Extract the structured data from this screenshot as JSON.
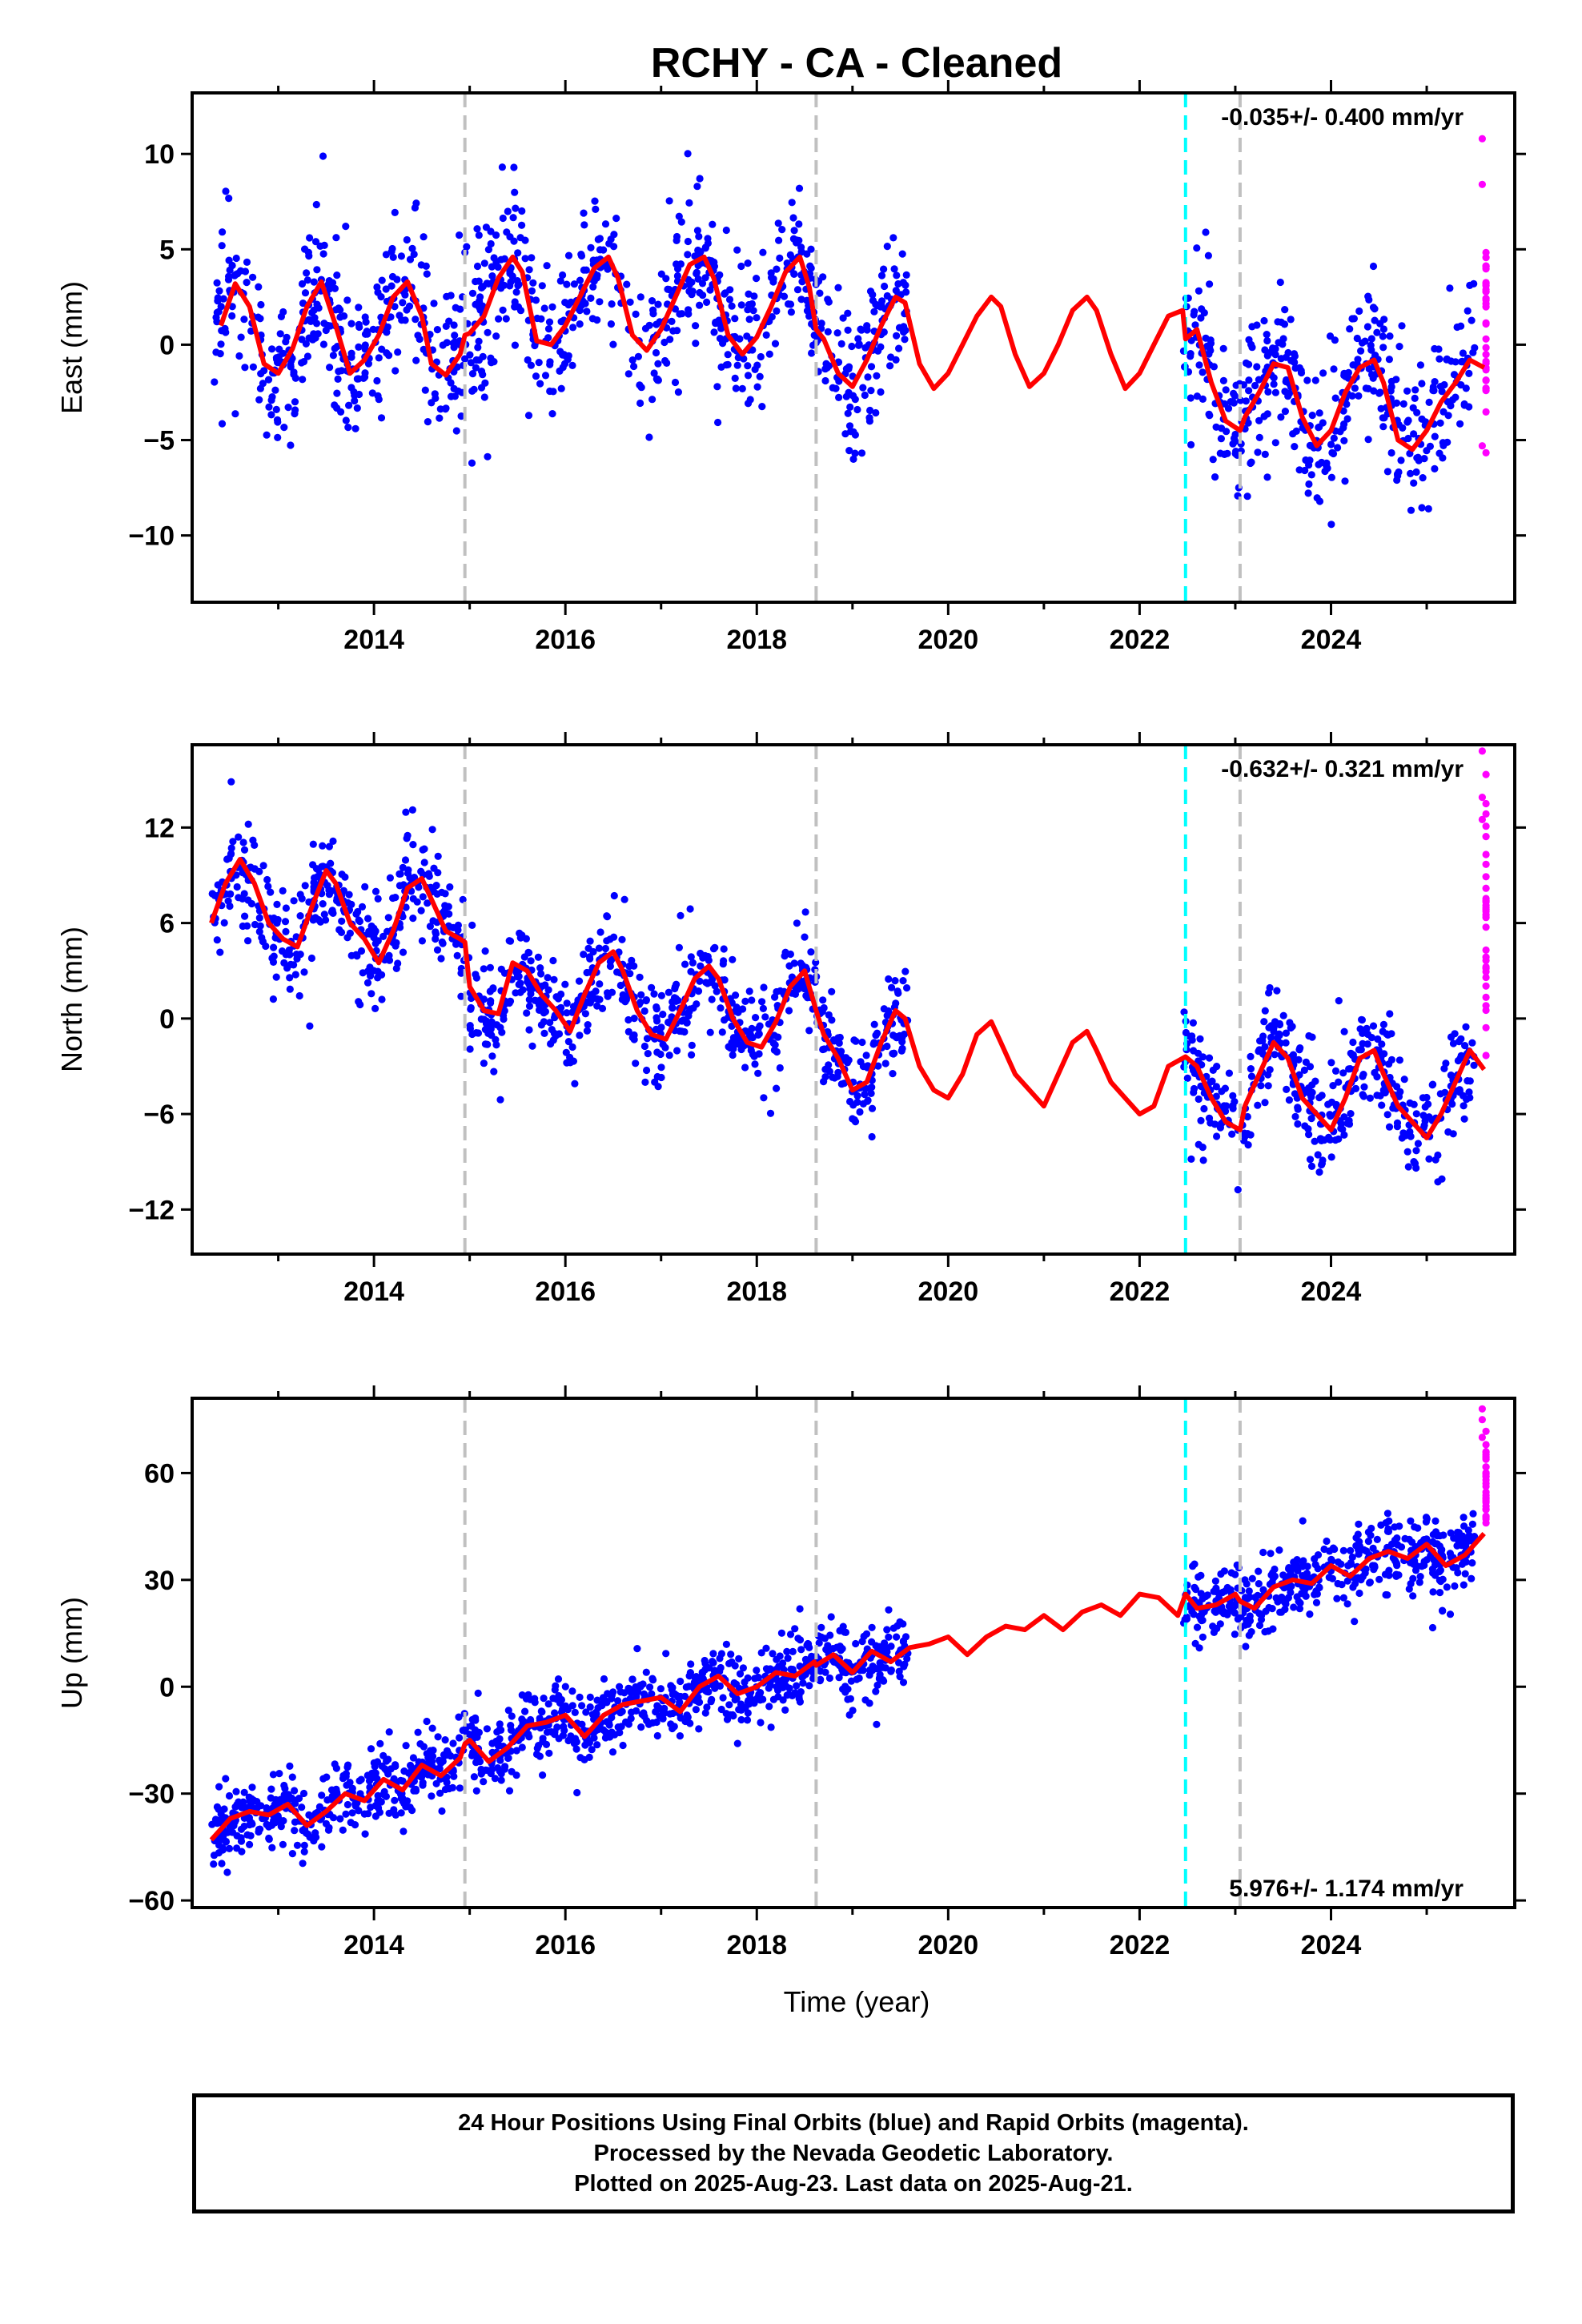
{
  "chart_data": {
    "title": "RCHY  - CA - Cleaned",
    "xlabel": "Time (year)",
    "xlim": [
      2012.1,
      2025.92
    ],
    "x_ticks": [
      2014,
      2016,
      2018,
      2020,
      2022,
      2024
    ],
    "colors": {
      "final": "#0000ff",
      "rapid": "#ff00ff",
      "model": "#ff0000",
      "equipment_change": "#c0c0c0",
      "earthquake": "#00ffff"
    },
    "gray_dashed_lines": [
      2014.95,
      2018.62,
      2023.05
    ],
    "cyan_dashed_lines": [
      2022.48
    ],
    "data_gap": [
      2019.58,
      2022.46
    ],
    "rapid_start": 2025.5,
    "panels": [
      {
        "ylabel": "East (mm)",
        "ylim": [
          -13.5,
          13.2
        ],
        "y_ticks": [
          -10,
          -5,
          0,
          5,
          10
        ],
        "rate_label": "-0.035+/- 0.400 mm/yr",
        "rate_position": "top-right",
        "model": {
          "x": [
            2012.4,
            2012.55,
            2012.7,
            2012.85,
            2013.0,
            2013.15,
            2013.3,
            2013.45,
            2013.6,
            2013.75,
            2013.9,
            2014.05,
            2014.2,
            2014.35,
            2014.5,
            2014.6,
            2014.75,
            2014.9,
            2014.95,
            2015.0,
            2015.15,
            2015.3,
            2015.45,
            2015.55,
            2015.7,
            2015.85,
            2016.0,
            2016.15,
            2016.3,
            2016.45,
            2016.55,
            2016.7,
            2016.85,
            2017.0,
            2017.15,
            2017.3,
            2017.45,
            2017.55,
            2017.7,
            2017.85,
            2018.0,
            2018.15,
            2018.3,
            2018.45,
            2018.55,
            2018.62,
            2018.7,
            2018.85,
            2019.0,
            2019.15,
            2019.3,
            2019.45,
            2019.55,
            2019.7,
            2019.85,
            2020.0,
            2020.15,
            2020.3,
            2020.45,
            2020.55,
            2020.7,
            2020.85,
            2021.0,
            2021.15,
            2021.3,
            2021.45,
            2021.55,
            2021.7,
            2021.85,
            2022.0,
            2022.15,
            2022.3,
            2022.45,
            2022.48,
            2022.6,
            2022.75,
            2022.9,
            2023.05,
            2023.1,
            2023.25,
            2023.4,
            2023.55,
            2023.7,
            2023.85,
            2024.0,
            2024.15,
            2024.3,
            2024.45,
            2024.55,
            2024.7,
            2024.85,
            2025.0,
            2025.15,
            2025.3,
            2025.45,
            2025.6
          ],
          "y": [
            1.0,
            3.2,
            2.0,
            -1.0,
            -1.5,
            -0.2,
            2.0,
            3.3,
            1.0,
            -1.5,
            -0.8,
            0.5,
            2.5,
            3.3,
            1.5,
            -1.0,
            -1.6,
            -0.5,
            0.5,
            0.6,
            1.5,
            3.5,
            4.6,
            3.8,
            0.2,
            0.0,
            1.0,
            2.5,
            4.0,
            4.6,
            3.5,
            0.5,
            -0.3,
            0.8,
            2.5,
            4.2,
            4.6,
            3.5,
            0.5,
            -0.5,
            0.4,
            2.0,
            3.8,
            4.6,
            3.0,
            0.8,
            0.3,
            -1.5,
            -2.2,
            -0.8,
            1.0,
            2.5,
            2.2,
            -1.0,
            -2.3,
            -1.5,
            0.0,
            1.5,
            2.5,
            2.0,
            -0.5,
            -2.2,
            -1.5,
            0.0,
            1.8,
            2.5,
            1.8,
            -0.5,
            -2.3,
            -1.5,
            0.0,
            1.5,
            1.8,
            0.3,
            0.8,
            -2.0,
            -4.0,
            -4.5,
            -3.8,
            -2.5,
            -1.0,
            -1.2,
            -3.8,
            -5.3,
            -4.5,
            -2.5,
            -1.2,
            -0.8,
            -2.0,
            -5.0,
            -5.5,
            -4.5,
            -3.0,
            -2.0,
            -0.8,
            -1.2
          ]
        },
        "scatter": {
          "segments": [
            [
              2012.3,
              2014.95,
              -1.0
            ],
            [
              2014.95,
              2018.62,
              -0.6
            ],
            [
              2018.62,
              2019.58,
              -1.2
            ],
            [
              2022.46,
              2023.05,
              -3.0
            ],
            [
              2023.05,
              2025.5,
              -2.2
            ]
          ],
          "n": 1400,
          "noise": 2.6,
          "seed": 11
        },
        "rapid": {
          "n": 32,
          "center": 1.2,
          "spread": 4.5,
          "extra": [
            10.8,
            8.4,
            -5.3
          ]
        }
      },
      {
        "ylabel": "North (mm)",
        "ylim": [
          -14.8,
          17.2
        ],
        "y_ticks": [
          -12,
          -6,
          0,
          6,
          12
        ],
        "rate_label": "-0.632+/- 0.321 mm/yr",
        "rate_position": "top-right",
        "model": {
          "x": [
            2012.3,
            2012.45,
            2012.6,
            2012.75,
            2012.9,
            2013.05,
            2013.2,
            2013.35,
            2013.5,
            2013.6,
            2013.75,
            2013.9,
            2014.05,
            2014.2,
            2014.35,
            2014.5,
            2014.6,
            2014.75,
            2014.9,
            2014.95,
            2015.0,
            2015.15,
            2015.3,
            2015.45,
            2015.6,
            2015.75,
            2015.9,
            2016.05,
            2016.2,
            2016.35,
            2016.5,
            2016.6,
            2016.75,
            2016.9,
            2017.05,
            2017.2,
            2017.35,
            2017.5,
            2017.6,
            2017.75,
            2017.9,
            2018.05,
            2018.2,
            2018.35,
            2018.5,
            2018.62,
            2018.7,
            2018.85,
            2019.0,
            2019.15,
            2019.3,
            2019.45,
            2019.55,
            2019.7,
            2019.85,
            2020.0,
            2020.15,
            2020.3,
            2020.45,
            2020.55,
            2020.7,
            2020.85,
            2021.0,
            2021.15,
            2021.3,
            2021.45,
            2021.55,
            2021.7,
            2021.85,
            2022.0,
            2022.15,
            2022.3,
            2022.45,
            2022.48,
            2022.6,
            2022.75,
            2022.9,
            2023.05,
            2023.1,
            2023.25,
            2023.4,
            2023.55,
            2023.7,
            2023.85,
            2024.0,
            2024.15,
            2024.3,
            2024.45,
            2024.55,
            2024.7,
            2024.85,
            2025.0,
            2025.15,
            2025.3,
            2025.45,
            2025.6
          ],
          "y": [
            6.0,
            8.5,
            10.0,
            8.5,
            6.0,
            5.0,
            4.5,
            7.0,
            9.3,
            8.5,
            6.0,
            5.0,
            3.5,
            5.5,
            8.2,
            8.8,
            7.5,
            5.5,
            5.0,
            4.8,
            2.0,
            0.5,
            0.3,
            3.5,
            3.0,
            1.5,
            0.5,
            -0.8,
            1.5,
            3.5,
            4.2,
            3.0,
            0.5,
            -1.0,
            -1.3,
            0.5,
            2.5,
            3.3,
            2.5,
            0.0,
            -1.5,
            -1.8,
            -0.2,
            2.0,
            3.0,
            0.5,
            -1.0,
            -2.5,
            -4.5,
            -4.0,
            -1.5,
            0.5,
            0.0,
            -3.0,
            -4.5,
            -5.0,
            -3.5,
            -1.0,
            -0.2,
            -1.5,
            -3.5,
            -4.5,
            -5.5,
            -3.5,
            -1.5,
            -0.8,
            -2.0,
            -4.0,
            -5.0,
            -6.0,
            -5.5,
            -3.0,
            -2.5,
            -2.4,
            -3.0,
            -5.0,
            -6.5,
            -7.0,
            -5.5,
            -3.5,
            -1.5,
            -2.5,
            -5.0,
            -6.0,
            -7.0,
            -5.0,
            -2.5,
            -2.0,
            -3.5,
            -5.5,
            -6.5,
            -7.5,
            -6.0,
            -4.0,
            -2.0,
            -3.2
          ]
        },
        "scatter": {
          "segments": [
            [
              2012.3,
              2014.95,
              6.8
            ],
            [
              2014.95,
              2018.62,
              1.2
            ],
            [
              2018.62,
              2019.58,
              -3.2
            ],
            [
              2022.46,
              2023.05,
              -5.5
            ],
            [
              2023.05,
              2025.5,
              -5.0
            ]
          ],
          "n": 1400,
          "noise": 2.1,
          "seed": 23
        },
        "rapid": {
          "n": 32,
          "center": 5.5,
          "spread": 6.5,
          "extra": [
            16.8,
            13.9,
            12.5
          ]
        }
      },
      {
        "ylabel": "Up (mm)",
        "ylim": [
          -62,
          81
        ],
        "y_ticks": [
          -60,
          -30,
          0,
          30,
          60
        ],
        "rate_label": "5.976+/- 1.174 mm/yr",
        "rate_position": "bottom-right",
        "model": {
          "x": [
            2012.3,
            2012.5,
            2012.7,
            2012.9,
            2013.1,
            2013.3,
            2013.5,
            2013.7,
            2013.9,
            2014.1,
            2014.3,
            2014.5,
            2014.7,
            2014.9,
            2014.95,
            2015.0,
            2015.2,
            2015.4,
            2015.6,
            2015.8,
            2016.0,
            2016.2,
            2016.4,
            2016.6,
            2016.8,
            2017.0,
            2017.2,
            2017.4,
            2017.6,
            2017.8,
            2018.0,
            2018.2,
            2018.4,
            2018.6,
            2018.62,
            2018.8,
            2019.0,
            2019.2,
            2019.4,
            2019.6,
            2019.8,
            2020.0,
            2020.2,
            2020.4,
            2020.6,
            2020.8,
            2021.0,
            2021.2,
            2021.4,
            2021.6,
            2021.8,
            2022.0,
            2022.2,
            2022.4,
            2022.48,
            2022.6,
            2022.8,
            2023.0,
            2023.05,
            2023.2,
            2023.4,
            2023.6,
            2023.8,
            2024.0,
            2024.2,
            2024.4,
            2024.6,
            2024.8,
            2025.0,
            2025.2,
            2025.4,
            2025.6
          ],
          "y": [
            -43,
            -37,
            -35,
            -36,
            -33,
            -39,
            -35,
            -30,
            -32,
            -26,
            -29,
            -22,
            -25,
            -20,
            -16,
            -15,
            -21,
            -17,
            -11,
            -10,
            -8,
            -14,
            -8,
            -5,
            -4,
            -3,
            -7,
            0,
            3,
            -2,
            0,
            4,
            3,
            7,
            6,
            9,
            4,
            10,
            7,
            11,
            12,
            14,
            9,
            14,
            17,
            16,
            20,
            16,
            21,
            23,
            20,
            26,
            25,
            20,
            26,
            22,
            23,
            26,
            24,
            22,
            28,
            30,
            29,
            34,
            31,
            36,
            38,
            36,
            40,
            34,
            37,
            43
          ]
        },
        "scatter": {
          "segments": [
            [
              2012.3,
              2014.95,
              -30.0
            ],
            [
              2014.95,
              2018.62,
              -6.0
            ],
            [
              2018.62,
              2019.58,
              7.0
            ],
            [
              2022.46,
              2023.05,
              23.0
            ],
            [
              2023.05,
              2025.5,
              30.0
            ]
          ],
          "n": 1500,
          "noise": 6.5,
          "seed": 37,
          "slope": 6.0
        },
        "rapid": {
          "n": 30,
          "center": 58,
          "spread": 12,
          "extra": [
            78,
            75,
            70
          ]
        }
      }
    ]
  },
  "footer": {
    "line1": "24 Hour Positions Using Final Orbits (blue) and Rapid Orbits (magenta).",
    "line2": "Processed by the Nevada Geodetic Laboratory.",
    "line3": "Plotted on 2025-Aug-23. Last data on 2025-Aug-21."
  }
}
